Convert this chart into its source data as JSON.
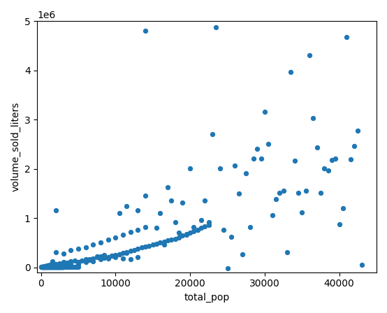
{
  "xlabel": "total_pop",
  "ylabel": "volume_sold_liters",
  "xlim": [
    -500,
    45000
  ],
  "ylim": [
    -100000,
    5000000
  ],
  "marker_color": "#1f77b4",
  "marker_size": 18,
  "figsize": [
    5.54,
    4.48
  ],
  "dpi": 100,
  "points": [
    [
      50,
      2000
    ],
    [
      80,
      3000
    ],
    [
      100,
      5000
    ],
    [
      120,
      8000
    ],
    [
      150,
      4000
    ],
    [
      180,
      6000
    ],
    [
      200,
      10000
    ],
    [
      220,
      7000
    ],
    [
      250,
      9000
    ],
    [
      280,
      5000
    ],
    [
      300,
      8000
    ],
    [
      320,
      6000
    ],
    [
      350,
      11000
    ],
    [
      380,
      9000
    ],
    [
      400,
      7000
    ],
    [
      420,
      5000
    ],
    [
      450,
      8000
    ],
    [
      480,
      10000
    ],
    [
      500,
      9000
    ],
    [
      520,
      6000
    ],
    [
      550,
      11000
    ],
    [
      580,
      8000
    ],
    [
      600,
      12000
    ],
    [
      620,
      7000
    ],
    [
      650,
      9000
    ],
    [
      680,
      10000
    ],
    [
      700,
      11000
    ],
    [
      720,
      8000
    ],
    [
      750,
      9000
    ],
    [
      780,
      7000
    ],
    [
      800,
      10000
    ],
    [
      820,
      12000
    ],
    [
      850,
      8000
    ],
    [
      880,
      9000
    ],
    [
      900,
      11000
    ],
    [
      920,
      7000
    ],
    [
      950,
      10000
    ],
    [
      980,
      8000
    ],
    [
      1000,
      12000
    ],
    [
      1020,
      9000
    ],
    [
      1050,
      11000
    ],
    [
      1080,
      8000
    ],
    [
      1100,
      13000
    ],
    [
      1120,
      9000
    ],
    [
      1150,
      10000
    ],
    [
      1180,
      7000
    ],
    [
      1200,
      11000
    ],
    [
      1220,
      8000
    ],
    [
      1250,
      10000
    ],
    [
      1280,
      9000
    ],
    [
      1300,
      12000
    ],
    [
      1320,
      8000
    ],
    [
      1350,
      11000
    ],
    [
      1380,
      9000
    ],
    [
      1400,
      10000
    ],
    [
      1420,
      8000
    ],
    [
      1450,
      11000
    ],
    [
      1480,
      9000
    ],
    [
      1500,
      13000
    ],
    [
      1520,
      8000
    ],
    [
      1550,
      10000
    ],
    [
      1580,
      9000
    ],
    [
      1600,
      11000
    ],
    [
      1620,
      8000
    ],
    [
      1650,
      12000
    ],
    [
      1680,
      9000
    ],
    [
      1700,
      11000
    ],
    [
      1720,
      8000
    ],
    [
      1750,
      10000
    ],
    [
      1780,
      9000
    ],
    [
      1800,
      12000
    ],
    [
      1820,
      8000
    ],
    [
      1850,
      11000
    ],
    [
      1880,
      9000
    ],
    [
      1900,
      10000
    ],
    [
      1920,
      7000
    ],
    [
      1950,
      11000
    ],
    [
      1980,
      9000
    ],
    [
      2000,
      12000
    ],
    [
      2020,
      8000
    ],
    [
      2050,
      10000
    ],
    [
      2080,
      9000
    ],
    [
      2100,
      11000
    ],
    [
      2120,
      8000
    ],
    [
      2150,
      13000
    ],
    [
      2180,
      9000
    ],
    [
      2200,
      10000
    ],
    [
      2220,
      8000
    ],
    [
      2250,
      11000
    ],
    [
      2280,
      9000
    ],
    [
      2300,
      12000
    ],
    [
      2320,
      8000
    ],
    [
      2350,
      11000
    ],
    [
      2380,
      9000
    ],
    [
      2400,
      10000
    ],
    [
      2420,
      8000
    ],
    [
      2450,
      11000
    ],
    [
      2480,
      9000
    ],
    [
      2500,
      13000
    ],
    [
      2520,
      8000
    ],
    [
      2550,
      10000
    ],
    [
      2580,
      9000
    ],
    [
      2600,
      11000
    ],
    [
      2620,
      8000
    ],
    [
      2650,
      12000
    ],
    [
      2680,
      9000
    ],
    [
      2700,
      11000
    ],
    [
      2720,
      8000
    ],
    [
      2750,
      10000
    ],
    [
      2780,
      9000
    ],
    [
      2800,
      12000
    ],
    [
      2820,
      8000
    ],
    [
      2850,
      11000
    ],
    [
      2880,
      9000
    ],
    [
      2900,
      10000
    ],
    [
      2920,
      7000
    ],
    [
      2950,
      11000
    ],
    [
      2980,
      9000
    ],
    [
      3000,
      12000
    ],
    [
      3200,
      9000
    ],
    [
      3400,
      11000
    ],
    [
      3600,
      10000
    ],
    [
      3800,
      12000
    ],
    [
      4000,
      11000
    ],
    [
      4200,
      10000
    ],
    [
      4400,
      9000
    ],
    [
      4600,
      11000
    ],
    [
      4800,
      10000
    ],
    [
      5000,
      12000
    ],
    [
      1500,
      115000
    ],
    [
      2000,
      65000
    ],
    [
      2500,
      80000
    ],
    [
      3000,
      110000
    ],
    [
      3500,
      90000
    ],
    [
      4000,
      120000
    ],
    [
      4500,
      130000
    ],
    [
      5000,
      70000
    ],
    [
      5500,
      140000
    ],
    [
      6000,
      160000
    ],
    [
      6500,
      150000
    ],
    [
      7000,
      180000
    ],
    [
      7500,
      200000
    ],
    [
      8000,
      220000
    ],
    [
      8500,
      190000
    ],
    [
      9000,
      210000
    ],
    [
      9500,
      230000
    ],
    [
      10000,
      250000
    ],
    [
      10500,
      270000
    ],
    [
      11000,
      290000
    ],
    [
      11500,
      310000
    ],
    [
      12000,
      330000
    ],
    [
      12500,
      350000
    ],
    [
      13000,
      380000
    ],
    [
      13500,
      400000
    ],
    [
      14000,
      420000
    ],
    [
      14500,
      440000
    ],
    [
      15000,
      460000
    ],
    [
      15500,
      480000
    ],
    [
      16000,
      500000
    ],
    [
      16500,
      520000
    ],
    [
      17000,
      540000
    ],
    [
      17500,
      560000
    ],
    [
      18000,
      580000
    ],
    [
      18500,
      610000
    ],
    [
      19000,
      640000
    ],
    [
      19500,
      670000
    ],
    [
      20000,
      700000
    ],
    [
      20500,
      730000
    ],
    [
      21000,
      760000
    ],
    [
      21500,
      800000
    ],
    [
      22000,
      830000
    ],
    [
      22500,
      860000
    ],
    [
      2000,
      310000
    ],
    [
      3000,
      280000
    ],
    [
      4000,
      350000
    ],
    [
      5000,
      380000
    ],
    [
      6000,
      410000
    ],
    [
      7000,
      460000
    ],
    [
      8000,
      510000
    ],
    [
      9000,
      560000
    ],
    [
      10000,
      610000
    ],
    [
      11000,
      660000
    ],
    [
      12000,
      710000
    ],
    [
      13000,
      760000
    ],
    [
      14000,
      810000
    ],
    [
      8000,
      160000
    ],
    [
      9000,
      180000
    ],
    [
      10000,
      200000
    ],
    [
      11000,
      180000
    ],
    [
      12000,
      160000
    ],
    [
      13000,
      200000
    ],
    [
      6500,
      170000
    ],
    [
      7500,
      220000
    ],
    [
      8500,
      250000
    ],
    [
      9500,
      240000
    ],
    [
      10500,
      270000
    ],
    [
      11500,
      290000
    ],
    [
      4000,
      80000
    ],
    [
      5000,
      100000
    ],
    [
      6000,
      110000
    ],
    [
      7000,
      120000
    ],
    [
      3000,
      70000
    ],
    [
      2500,
      50000
    ],
    [
      2000,
      40000
    ],
    [
      1800,
      60000
    ],
    [
      1500,
      55000
    ],
    [
      1200,
      45000
    ],
    [
      1000,
      38000
    ],
    [
      800,
      30000
    ],
    [
      600,
      22000
    ],
    [
      400,
      16000
    ],
    [
      300,
      13000
    ],
    [
      13000,
      1150000
    ],
    [
      11500,
      1240000
    ],
    [
      10500,
      1100000
    ],
    [
      2000,
      1150000
    ],
    [
      14000,
      4800000
    ],
    [
      14000,
      1460000
    ],
    [
      15500,
      800000
    ],
    [
      16000,
      1100000
    ],
    [
      16500,
      460000
    ],
    [
      17000,
      1620000
    ],
    [
      17500,
      1360000
    ],
    [
      18000,
      910000
    ],
    [
      18500,
      700000
    ],
    [
      19000,
      1310000
    ],
    [
      19500,
      660000
    ],
    [
      20000,
      2010000
    ],
    [
      20500,
      810000
    ],
    [
      21000,
      760000
    ],
    [
      21500,
      960000
    ],
    [
      22000,
      1360000
    ],
    [
      22500,
      910000
    ],
    [
      23000,
      2710000
    ],
    [
      23500,
      4870000
    ],
    [
      24000,
      2010000
    ],
    [
      24500,
      760000
    ],
    [
      25000,
      -20000
    ],
    [
      25500,
      620000
    ],
    [
      26000,
      2060000
    ],
    [
      26500,
      1500000
    ],
    [
      27000,
      260000
    ],
    [
      27500,
      1910000
    ],
    [
      28000,
      810000
    ],
    [
      28500,
      2210000
    ],
    [
      29000,
      2410000
    ],
    [
      29500,
      2210000
    ],
    [
      30000,
      3160000
    ],
    [
      30500,
      2510000
    ],
    [
      31000,
      1060000
    ],
    [
      31500,
      1390000
    ],
    [
      32000,
      1510000
    ],
    [
      32500,
      1560000
    ],
    [
      33000,
      300000
    ],
    [
      33500,
      3960000
    ],
    [
      34000,
      2160000
    ],
    [
      34500,
      1510000
    ],
    [
      35000,
      1110000
    ],
    [
      35500,
      1560000
    ],
    [
      36000,
      4310000
    ],
    [
      36500,
      3030000
    ],
    [
      37000,
      2440000
    ],
    [
      37500,
      1510000
    ],
    [
      38000,
      2010000
    ],
    [
      38500,
      1970000
    ],
    [
      39000,
      2180000
    ],
    [
      39500,
      2210000
    ],
    [
      40000,
      870000
    ],
    [
      40500,
      1200000
    ],
    [
      41000,
      4680000
    ],
    [
      41500,
      2190000
    ],
    [
      42000,
      2460000
    ],
    [
      42500,
      2770000
    ],
    [
      43000,
      45000
    ]
  ]
}
